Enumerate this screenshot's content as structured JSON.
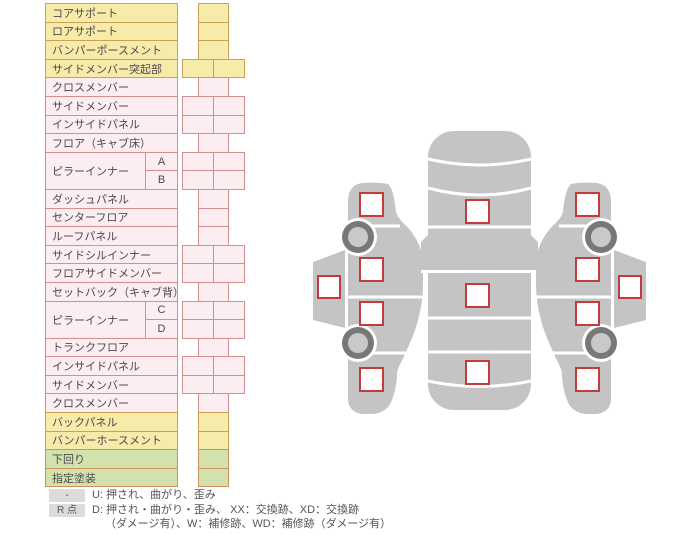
{
  "table": {
    "rows": [
      {
        "label": "コアサポート",
        "color": "yellow",
        "cells": "single"
      },
      {
        "label": "ロアサポート",
        "color": "yellow",
        "cells": "single"
      },
      {
        "label": "バンパーポースメント",
        "color": "yellow",
        "cells": "single"
      },
      {
        "label": "サイドメンバー突起部",
        "color": "yellow",
        "cells": "double"
      },
      {
        "label": "クロスメンバー",
        "color": "pink",
        "cells": "single"
      },
      {
        "label": "サイドメンバー",
        "color": "pink",
        "cells": "double"
      },
      {
        "label": "インサイドパネル",
        "color": "pink",
        "cells": "double"
      },
      {
        "label": "フロア（キャブ床）",
        "color": "pink",
        "cells": "single"
      },
      {
        "label": "ピラーインナー",
        "color": "pink",
        "group": [
          {
            "letter": "A",
            "cells": "double"
          },
          {
            "letter": "B",
            "cells": "double"
          }
        ]
      },
      {
        "label": "ダッシュパネル",
        "color": "pink",
        "cells": "single"
      },
      {
        "label": "センターフロア",
        "color": "pink",
        "cells": "single"
      },
      {
        "label": "ルーフパネル",
        "color": "pink",
        "cells": "single"
      },
      {
        "label": "サイドシルインナー",
        "color": "pink",
        "cells": "double"
      },
      {
        "label": "フロアサイドメンバー",
        "color": "pink",
        "cells": "double"
      },
      {
        "label": "セットバック（キャブ背）",
        "color": "pink",
        "cells": "single"
      },
      {
        "label": "ピラーインナー",
        "color": "pink",
        "group": [
          {
            "letter": "C",
            "cells": "double"
          },
          {
            "letter": "D",
            "cells": "double"
          }
        ]
      },
      {
        "label": "トランクフロア",
        "color": "pink",
        "cells": "single"
      },
      {
        "label": "インサイドパネル",
        "color": "pink",
        "cells": "double"
      },
      {
        "label": "サイドメンバー",
        "color": "pink",
        "cells": "double"
      },
      {
        "label": "クロスメンバー",
        "color": "pink",
        "cells": "single"
      },
      {
        "label": "バックパネル",
        "color": "yellow",
        "cells": "single"
      },
      {
        "label": "バンパーホースメント",
        "color": "yellow",
        "cells": "single"
      },
      {
        "label": "下回り",
        "color": "green",
        "cells": "single"
      },
      {
        "label": "指定塗装",
        "color": "green",
        "cells": "single"
      }
    ]
  },
  "legend": {
    "rows": [
      {
        "badge": "-",
        "text": "U: 押され、曲がり、歪み"
      },
      {
        "badge": "R 点",
        "text": "D: 押され・曲がり・歪み、 XX：交換跡、XD：交換跡",
        "text2": "（ダメージ有）、W：補修跡、WD：補修跡（ダメージ有）"
      }
    ]
  },
  "diagram": {
    "views": [
      {
        "name": "left-side-view",
        "checkbox_count": 5
      },
      {
        "name": "top-view",
        "checkbox_count": 3
      },
      {
        "name": "right-side-view",
        "checkbox_count": 5
      }
    ]
  },
  "colors": {
    "row_yellow": "#F7EBAA",
    "row_yellow_border": "#CDA155",
    "row_pink": "#FBEDF0",
    "row_pink_border": "#D49090",
    "row_green": "#D3E1AD",
    "row_green_border": "#CE9159",
    "car_body": "#C4C4C4",
    "checkbox_border": "#C33B3B",
    "wheel_ring": "#787878",
    "wheel_hub": "#C9C9C9",
    "legend_badge_bg": "#DCDCDC"
  }
}
